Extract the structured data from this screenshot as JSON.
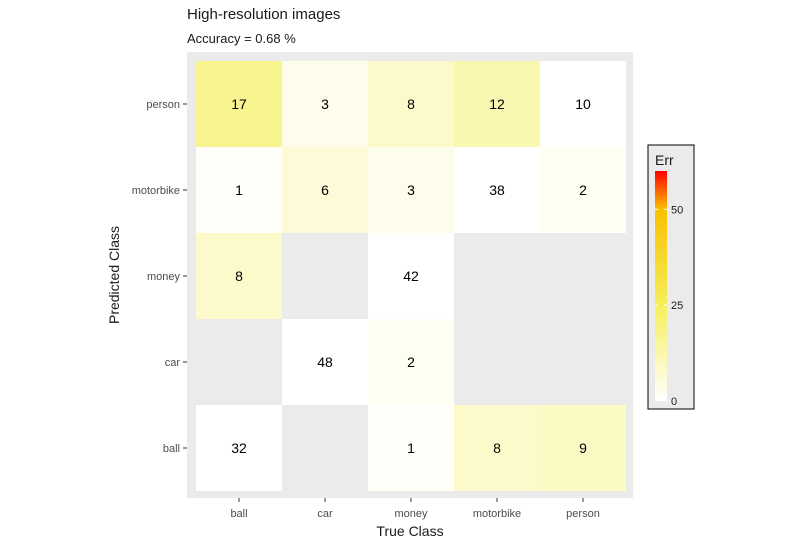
{
  "title": "High-resolution images",
  "subtitle": "Accuracy =  0.68 %",
  "chart_data": {
    "type": "heatmap",
    "x_categories": [
      "ball",
      "car",
      "money",
      "motorbike",
      "person"
    ],
    "y_categories": [
      "ball",
      "car",
      "money",
      "motorbike",
      "person"
    ],
    "xlabel": "True Class",
    "ylabel": "Predicted Class",
    "cells": [
      {
        "x": "ball",
        "y": "person",
        "value": 17
      },
      {
        "x": "car",
        "y": "person",
        "value": 3
      },
      {
        "x": "money",
        "y": "person",
        "value": 8
      },
      {
        "x": "motorbike",
        "y": "person",
        "value": 12
      },
      {
        "x": "person",
        "y": "person",
        "value": 10
      },
      {
        "x": "ball",
        "y": "motorbike",
        "value": 1
      },
      {
        "x": "car",
        "y": "motorbike",
        "value": 6
      },
      {
        "x": "money",
        "y": "motorbike",
        "value": 3
      },
      {
        "x": "motorbike",
        "y": "motorbike",
        "value": 38
      },
      {
        "x": "person",
        "y": "motorbike",
        "value": 2
      },
      {
        "x": "ball",
        "y": "money",
        "value": 8
      },
      {
        "x": "money",
        "y": "money",
        "value": 42
      },
      {
        "x": "car",
        "y": "car",
        "value": 48
      },
      {
        "x": "money",
        "y": "car",
        "value": 2
      },
      {
        "x": "ball",
        "y": "ball",
        "value": 32
      },
      {
        "x": "money",
        "y": "ball",
        "value": 1
      },
      {
        "x": "motorbike",
        "y": "ball",
        "value": 8
      },
      {
        "x": "person",
        "y": "ball",
        "value": 9
      }
    ],
    "legend": {
      "title": "Err",
      "ticks": [
        0,
        25,
        50
      ],
      "range": [
        0,
        60
      ],
      "colors": [
        "#ffffff",
        "#f5ef5a",
        "#f9c000",
        "#ff0000"
      ],
      "placement": "right"
    },
    "diagonal_fill": "#ffffff",
    "panel_background": "#ebebeb"
  }
}
